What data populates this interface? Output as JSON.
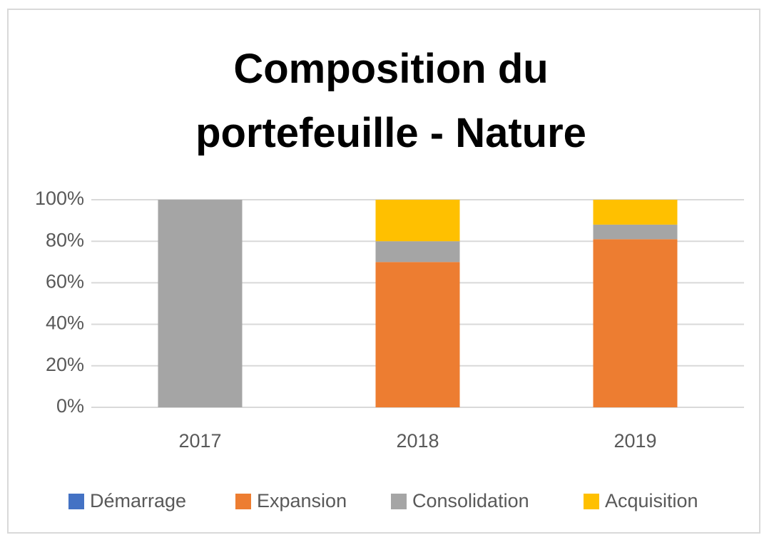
{
  "chart_data": {
    "type": "bar",
    "stacked": true,
    "title": "Composition du portefeuille - Nature",
    "categories": [
      "2017",
      "2018",
      "2019"
    ],
    "series": [
      {
        "name": "Démarrage",
        "color": "#4472c4",
        "values": [
          0,
          0,
          0
        ]
      },
      {
        "name": "Expansion",
        "color": "#ed7d31",
        "values": [
          0,
          70,
          81
        ]
      },
      {
        "name": "Consolidation",
        "color": "#a5a5a5",
        "values": [
          100,
          10,
          7
        ]
      },
      {
        "name": "Acquisition",
        "color": "#ffc000",
        "values": [
          0,
          20,
          12
        ]
      }
    ],
    "ylim": [
      0,
      100
    ],
    "yticks": [
      {
        "value": 0,
        "label": "0%"
      },
      {
        "value": 20,
        "label": "20%"
      },
      {
        "value": 40,
        "label": "40%"
      },
      {
        "value": 60,
        "label": "60%"
      },
      {
        "value": 80,
        "label": "80%"
      },
      {
        "value": 100,
        "label": "100%"
      }
    ],
    "grid": true,
    "legend": "bottom"
  }
}
